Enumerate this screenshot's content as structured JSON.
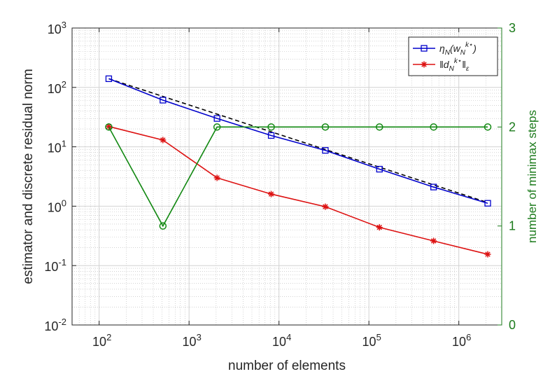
{
  "chart_data": {
    "type": "line",
    "title": "",
    "xlabel": "number of elements",
    "ylabel": "estimator and discrete residual norm",
    "y2label": "number of minimax steps",
    "xscale": "log",
    "yscale": "log",
    "xlim": [
      50,
      3000000
    ],
    "ylim": [
      0.01,
      1000
    ],
    "y2lim": [
      0,
      3
    ],
    "grid": true,
    "x_ticks": [
      {
        "value": 100,
        "base": "10",
        "exp": "2"
      },
      {
        "value": 1000,
        "base": "10",
        "exp": "3"
      },
      {
        "value": 10000,
        "base": "10",
        "exp": "4"
      },
      {
        "value": 100000,
        "base": "10",
        "exp": "5"
      },
      {
        "value": 1000000,
        "base": "10",
        "exp": "6"
      }
    ],
    "y_ticks": [
      {
        "value": 0.01,
        "base": "10",
        "exp": "-2"
      },
      {
        "value": 0.1,
        "base": "10",
        "exp": "-1"
      },
      {
        "value": 1,
        "base": "10",
        "exp": "0"
      },
      {
        "value": 10,
        "base": "10",
        "exp": "1"
      },
      {
        "value": 100,
        "base": "10",
        "exp": "2"
      },
      {
        "value": 1000,
        "base": "10",
        "exp": "3"
      }
    ],
    "y2_ticks": [
      {
        "value": 0,
        "label": "0"
      },
      {
        "value": 1,
        "label": "1"
      },
      {
        "value": 2,
        "label": "2"
      },
      {
        "value": 3,
        "label": "3"
      }
    ],
    "x": [
      128,
      512,
      2048,
      8192,
      32768,
      131072,
      524288,
      2097152
    ],
    "series": [
      {
        "name": "eta_N(w_N^{k*})",
        "axis": "left",
        "color": "#0000cc",
        "marker": "square",
        "values": [
          140,
          61,
          30,
          15.5,
          8.7,
          4.2,
          2.1,
          1.12
        ]
      },
      {
        "name": "||d_N^{k*}||_eps",
        "axis": "left",
        "color": "#dd1111",
        "marker": "asterisk",
        "values": [
          22,
          13,
          3.0,
          1.6,
          0.98,
          0.44,
          0.26,
          0.155
        ]
      },
      {
        "name": "number of minimax steps",
        "axis": "right",
        "color": "#118811",
        "marker": "circle",
        "values": [
          2,
          1,
          2,
          2,
          2,
          2,
          2,
          2
        ]
      }
    ],
    "reference_line": {
      "style": "dashed",
      "color": "#000000",
      "x": [
        128,
        2097152
      ],
      "values": [
        140,
        1.15
      ]
    },
    "legend": {
      "position": "top-right",
      "entries": [
        {
          "main": "η",
          "sub": "N",
          "open": "(w",
          "sub2": "N",
          "sup2": "k⋆",
          "close": ")"
        },
        {
          "main": "‖d",
          "sub": "N",
          "sup": "k⋆",
          "close": "‖",
          "subclose": "ε"
        }
      ]
    }
  }
}
